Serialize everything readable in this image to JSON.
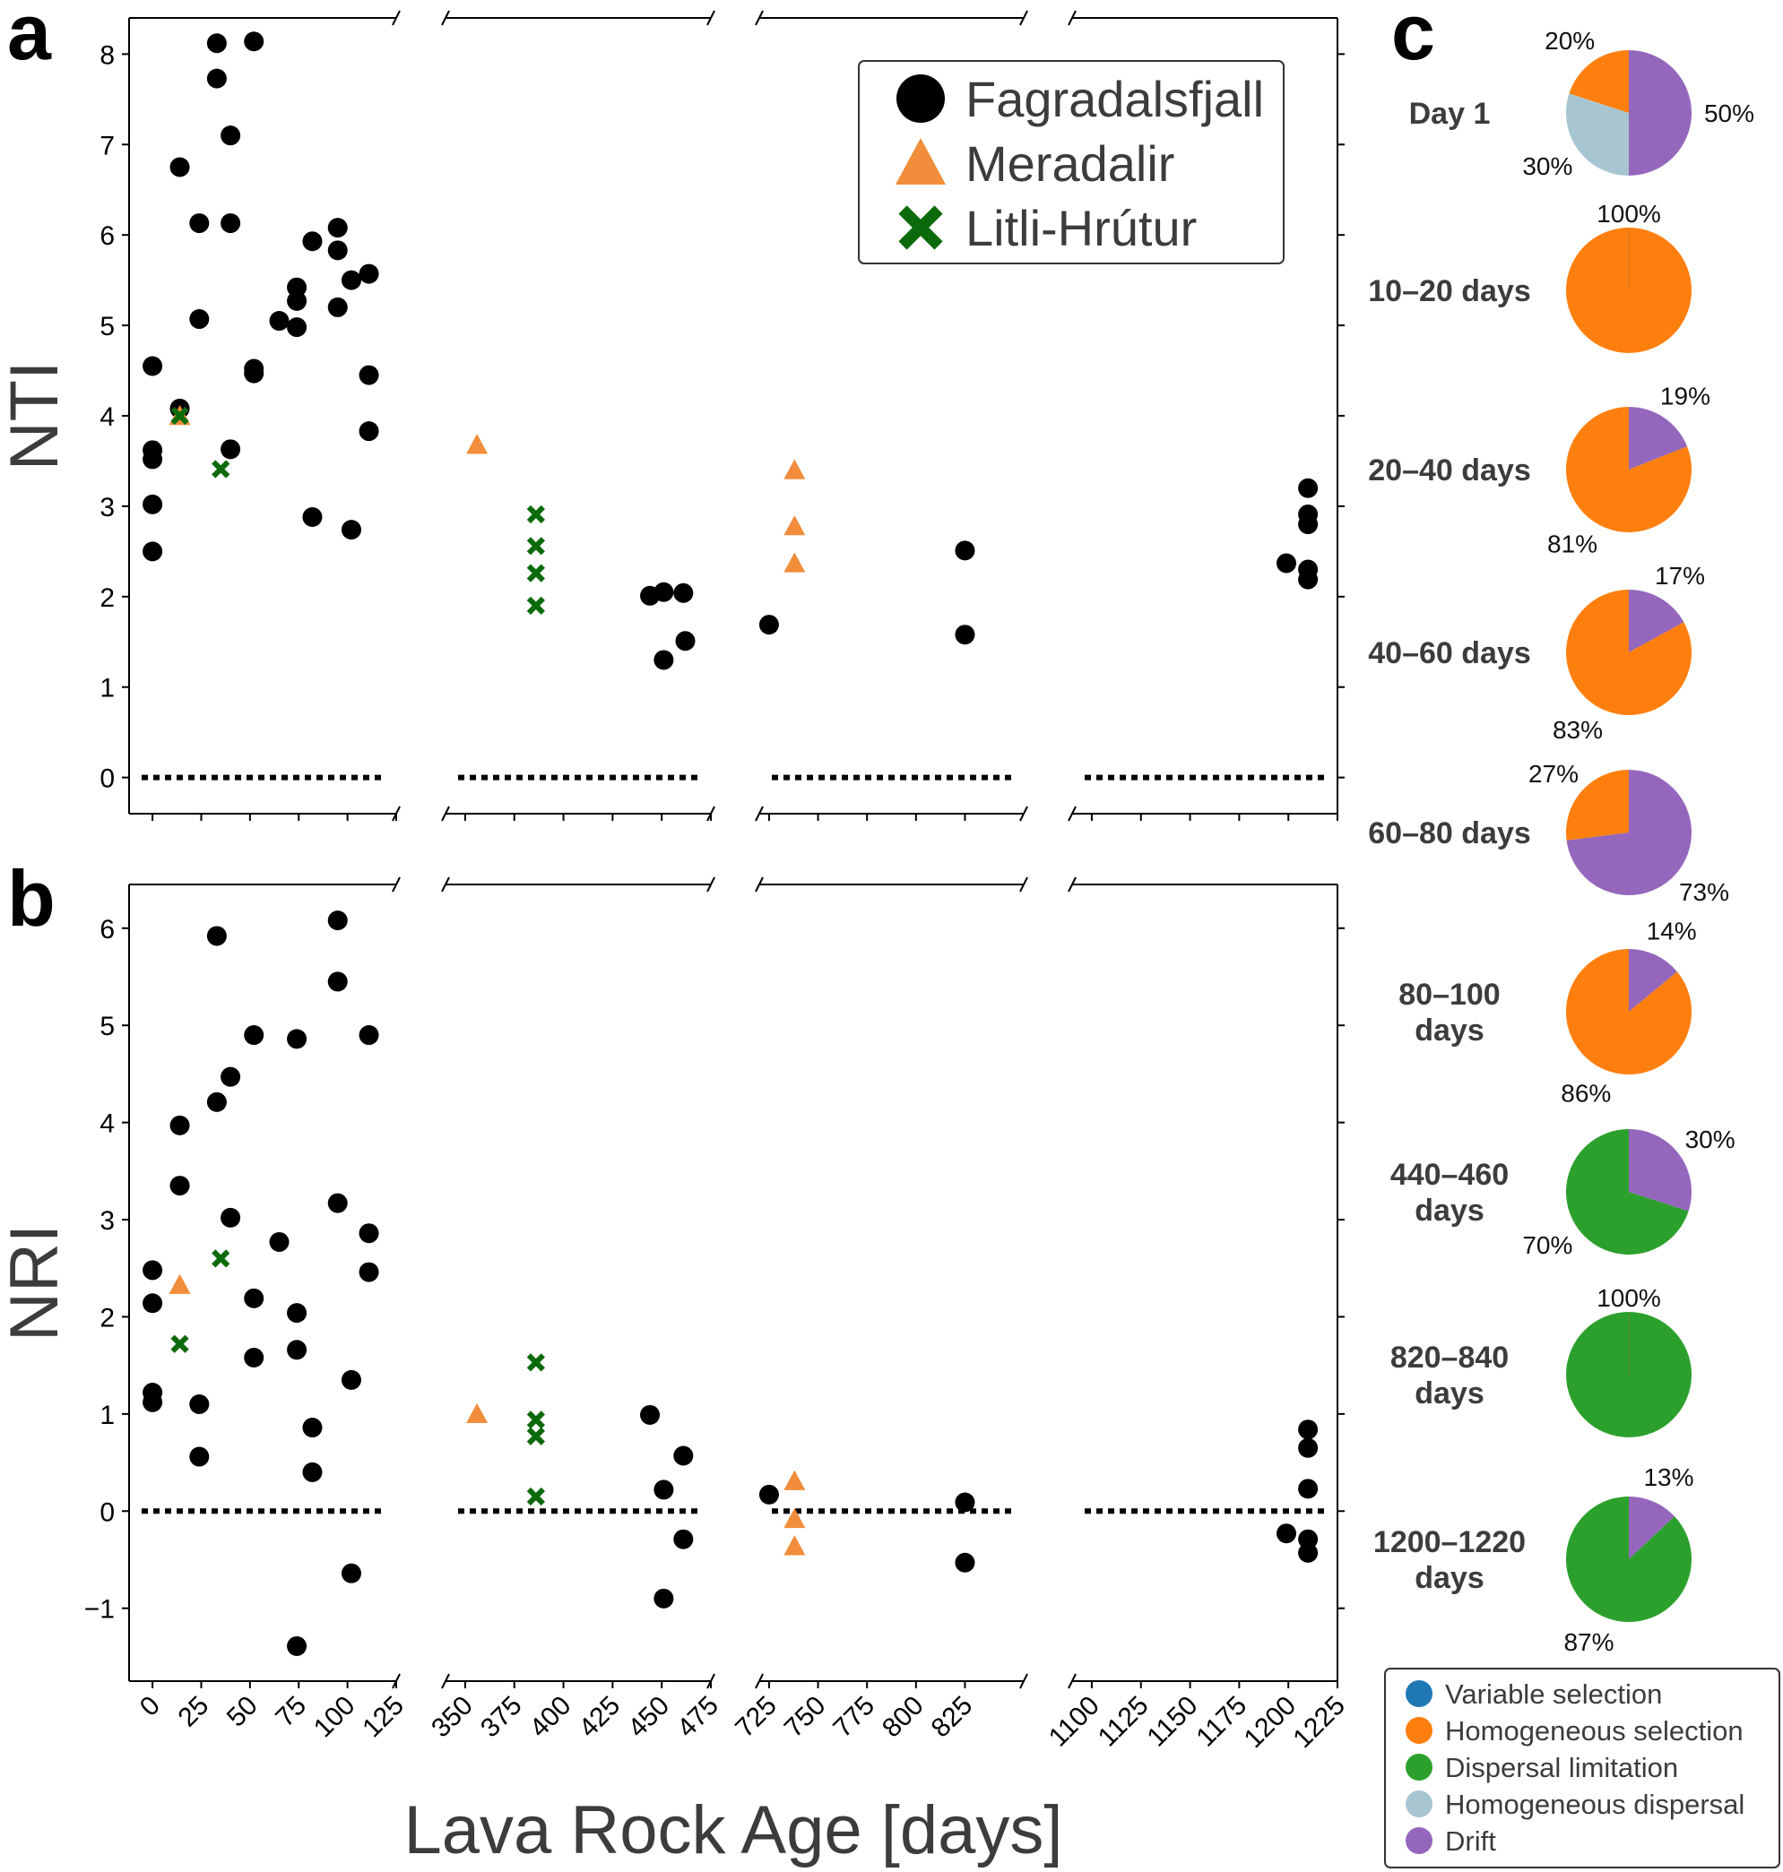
{
  "chart_data": [
    {
      "panel": "a",
      "type": "scatter",
      "ylabel": "NTI",
      "xlabel": "Lava Rock Age [days]",
      "ylim": [
        -0.4,
        8.4
      ],
      "yticks": [
        0,
        1,
        2,
        3,
        4,
        5,
        6,
        7,
        8
      ],
      "x_segments": [
        {
          "range": [
            -12,
            125
          ],
          "ticks": [
            0,
            25,
            50,
            75,
            100,
            125
          ]
        },
        {
          "range": [
            340,
            475
          ],
          "ticks": [
            350,
            375,
            400,
            425,
            450,
            475
          ]
        },
        {
          "range": [
            720,
            855
          ],
          "ticks": [
            725,
            750,
            775,
            800,
            825
          ]
        },
        {
          "range": [
            1090,
            1225
          ],
          "ticks": [
            1100,
            1125,
            1150,
            1175,
            1200,
            1225
          ]
        }
      ],
      "reference_line": 0,
      "legend": [
        "Fagradalsfjall",
        "Meradalir",
        "Litli-Hrútur"
      ],
      "series": [
        {
          "name": "Fagradalsfjall",
          "marker": "circle",
          "color": "#000000",
          "points": [
            [
              0,
              4.55
            ],
            [
              0,
              3.62
            ],
            [
              0,
              3.52
            ],
            [
              0,
              3.02
            ],
            [
              0,
              2.5
            ],
            [
              14,
              6.75
            ],
            [
              14,
              4.08
            ],
            [
              24,
              6.13
            ],
            [
              24,
              5.07
            ],
            [
              33,
              8.12
            ],
            [
              33,
              7.73
            ],
            [
              40,
              7.1
            ],
            [
              40,
              6.13
            ],
            [
              40,
              3.63
            ],
            [
              52,
              8.14
            ],
            [
              52,
              4.52
            ],
            [
              52,
              4.47
            ],
            [
              65,
              5.05
            ],
            [
              74,
              5.42
            ],
            [
              74,
              5.27
            ],
            [
              74,
              4.98
            ],
            [
              82,
              5.93
            ],
            [
              82,
              2.88
            ],
            [
              95,
              6.08
            ],
            [
              95,
              5.83
            ],
            [
              95,
              5.2
            ],
            [
              102,
              5.5
            ],
            [
              102,
              2.74
            ],
            [
              111,
              5.57
            ],
            [
              111,
              4.45
            ],
            [
              111,
              3.83
            ],
            [
              444,
              2.01
            ],
            [
              451,
              2.05
            ],
            [
              461,
              2.04
            ],
            [
              451,
              1.3
            ],
            [
              462,
              1.51
            ],
            [
              725,
              1.69
            ],
            [
              825,
              2.51
            ],
            [
              825,
              1.58
            ],
            [
              1199,
              2.37
            ],
            [
              1210,
              3.2
            ],
            [
              1210,
              2.91
            ],
            [
              1210,
              2.8
            ],
            [
              1210,
              2.3
            ],
            [
              1210,
              2.19
            ]
          ]
        },
        {
          "name": "Meradalir",
          "marker": "triangle",
          "color": "#f18d3b",
          "points": [
            [
              14,
              4.0
            ],
            [
              356,
              3.68
            ],
            [
              738,
              3.4
            ],
            [
              738,
              2.78
            ],
            [
              738,
              2.37
            ]
          ]
        },
        {
          "name": "Litli-Hrútur",
          "marker": "x",
          "color": "#0b6a0b",
          "points": [
            [
              14,
              4.0
            ],
            [
              35,
              3.41
            ],
            [
              386,
              2.91
            ],
            [
              386,
              2.56
            ],
            [
              386,
              2.26
            ],
            [
              386,
              1.9
            ]
          ]
        }
      ]
    },
    {
      "panel": "b",
      "type": "scatter",
      "ylabel": "NRI",
      "xlabel": "Lava Rock Age [days]",
      "ylim": [
        -1.75,
        6.45
      ],
      "yticks": [
        -1,
        0,
        1,
        2,
        3,
        4,
        5,
        6
      ],
      "ytick_labels": [
        "−1",
        "0",
        "1",
        "2",
        "3",
        "4",
        "5",
        "6"
      ],
      "reference_line": 0,
      "series": [
        {
          "name": "Fagradalsfjall",
          "marker": "circle",
          "color": "#000000",
          "points": [
            [
              0,
              2.48
            ],
            [
              0,
              2.14
            ],
            [
              0,
              1.22
            ],
            [
              0,
              1.12
            ],
            [
              14,
              3.97
            ],
            [
              14,
              3.35
            ],
            [
              24,
              1.1
            ],
            [
              24,
              0.56
            ],
            [
              33,
              5.92
            ],
            [
              33,
              4.21
            ],
            [
              40,
              4.47
            ],
            [
              40,
              3.02
            ],
            [
              52,
              4.9
            ],
            [
              52,
              2.19
            ],
            [
              52,
              1.58
            ],
            [
              65,
              2.77
            ],
            [
              74,
              4.86
            ],
            [
              74,
              2.04
            ],
            [
              74,
              1.66
            ],
            [
              74,
              -1.39
            ],
            [
              82,
              0.86
            ],
            [
              82,
              0.4
            ],
            [
              95,
              6.08
            ],
            [
              95,
              5.45
            ],
            [
              95,
              3.17
            ],
            [
              102,
              1.35
            ],
            [
              102,
              -0.64
            ],
            [
              111,
              4.9
            ],
            [
              111,
              2.86
            ],
            [
              111,
              2.46
            ],
            [
              444,
              0.99
            ],
            [
              451,
              0.22
            ],
            [
              461,
              0.57
            ],
            [
              461,
              -0.29
            ],
            [
              451,
              -0.9
            ],
            [
              725,
              0.17
            ],
            [
              825,
              0.09
            ],
            [
              825,
              -0.53
            ],
            [
              1199,
              -0.23
            ],
            [
              1210,
              0.84
            ],
            [
              1210,
              0.65
            ],
            [
              1210,
              0.23
            ],
            [
              1210,
              -0.29
            ],
            [
              1210,
              -0.43
            ]
          ]
        },
        {
          "name": "Meradalir",
          "marker": "triangle",
          "color": "#f18d3b",
          "points": [
            [
              14,
              2.33
            ],
            [
              356,
              1.0
            ],
            [
              738,
              0.31
            ],
            [
              738,
              -0.08
            ],
            [
              738,
              -0.36
            ]
          ]
        },
        {
          "name": "Litli-Hrútur",
          "marker": "x",
          "color": "#0b6a0b",
          "points": [
            [
              14,
              1.72
            ],
            [
              35,
              2.6
            ],
            [
              386,
              1.53
            ],
            [
              386,
              0.94
            ],
            [
              386,
              0.77
            ],
            [
              386,
              0.15
            ]
          ]
        }
      ]
    },
    {
      "panel": "c",
      "type": "pie",
      "categories": [
        "Variable selection",
        "Homogeneous selection",
        "Dispersal limitation",
        "Homogeneous dispersal",
        "Drift"
      ],
      "colors": [
        "#1f77b4",
        "#ff7f0e",
        "#2ca02c",
        "#a8c6d2",
        "#9467bd"
      ],
      "pies": [
        {
          "label": "Day 1",
          "slices": [
            {
              "category": "Drift",
              "value": 50,
              "text": "50%"
            },
            {
              "category": "Homogeneous dispersal",
              "value": 30,
              "text": "30%"
            },
            {
              "category": "Homogeneous selection",
              "value": 20,
              "text": "20%"
            }
          ]
        },
        {
          "label": "10–20 days",
          "slices": [
            {
              "category": "Homogeneous selection",
              "value": 100,
              "text": "100%"
            }
          ]
        },
        {
          "label": "20–40 days",
          "slices": [
            {
              "category": "Drift",
              "value": 19,
              "text": "19%"
            },
            {
              "category": "Homogeneous selection",
              "value": 81,
              "text": "81%"
            }
          ]
        },
        {
          "label": "40–60 days",
          "slices": [
            {
              "category": "Drift",
              "value": 17,
              "text": "17%"
            },
            {
              "category": "Homogeneous selection",
              "value": 83,
              "text": "83%"
            }
          ]
        },
        {
          "label": "60–80 days",
          "slices": [
            {
              "category": "Drift",
              "value": 73,
              "text": "73%"
            },
            {
              "category": "Homogeneous selection",
              "value": 27,
              "text": "27%"
            }
          ]
        },
        {
          "label": "80–100 days",
          "slices": [
            {
              "category": "Drift",
              "value": 14,
              "text": "14%"
            },
            {
              "category": "Homogeneous selection",
              "value": 86,
              "text": "86%"
            }
          ]
        },
        {
          "label": "440–460 days",
          "slices": [
            {
              "category": "Drift",
              "value": 30,
              "text": "30%"
            },
            {
              "category": "Dispersal limitation",
              "value": 70,
              "text": "70%"
            }
          ]
        },
        {
          "label": "820–840 days",
          "slices": [
            {
              "category": "Dispersal limitation",
              "value": 100,
              "text": "100%"
            }
          ]
        },
        {
          "label": "1200–1220 days",
          "slices": [
            {
              "category": "Drift",
              "value": 13,
              "text": "13%"
            },
            {
              "category": "Dispersal limitation",
              "value": 87,
              "text": "87%"
            }
          ]
        }
      ]
    }
  ]
}
